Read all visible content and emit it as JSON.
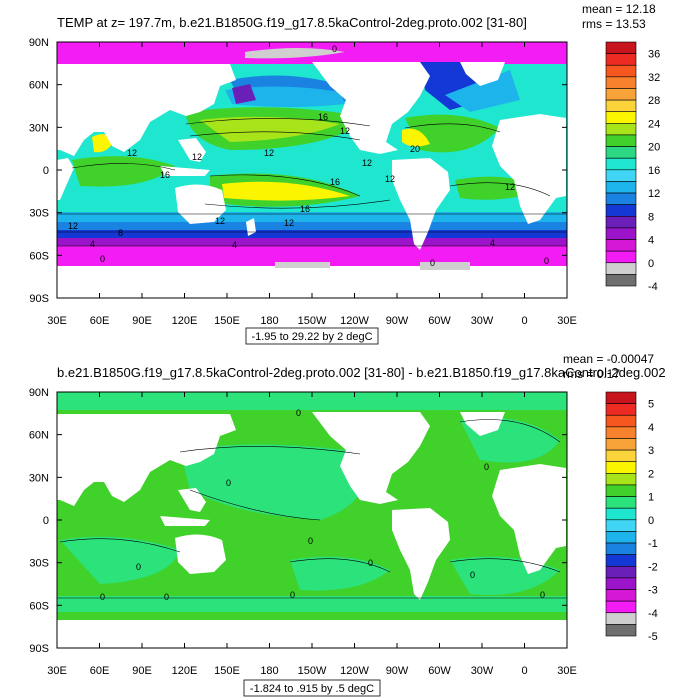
{
  "chart_data": [
    {
      "type": "heatmap",
      "title": "TEMP at z= 197.7m, b.e21.B1850G.f19_g17.8.5kaControl-2deg.proto.002 [31-80]",
      "stats": {
        "mean": "mean = 12.18",
        "rms": "rms = 13.53"
      },
      "x_ticks": [
        "30E",
        "60E",
        "90E",
        "120E",
        "150E",
        "180",
        "150W",
        "120W",
        "90W",
        "60W",
        "30W",
        "0",
        "30E"
      ],
      "y_ticks": [
        "90N",
        "60N",
        "30N",
        "0",
        "30S",
        "60S",
        "90S"
      ],
      "range_note": "-1.95 to 29.22 by 2 degC",
      "colorbar": {
        "labels": [
          "36",
          "32",
          "28",
          "24",
          "20",
          "16",
          "12",
          "8",
          "4",
          "0",
          "-4"
        ],
        "colors": [
          "#c8141c",
          "#ee2b22",
          "#f5571e",
          "#f7812c",
          "#f8a33a",
          "#fbd33b",
          "#fcf500",
          "#a8e41a",
          "#40d12b",
          "#2cd884",
          "#1ee6cf",
          "#40d5f4",
          "#1db4ec",
          "#1a82e0",
          "#1438d5",
          "#6a1fb8",
          "#9b14c9",
          "#d517d6",
          "#f31cf5",
          "#cfcfcf",
          "#6f6f6f"
        ]
      },
      "contour_labels": [
        "0",
        "16",
        "12",
        "12",
        "12",
        "16",
        "20",
        "12",
        "12",
        "16",
        "12",
        "12",
        "16",
        "12",
        "12",
        "12",
        "8",
        "4",
        "4",
        "4",
        "0",
        "0",
        "0"
      ]
    },
    {
      "type": "heatmap",
      "title": "b.e21.B1850G.f19_g17.8.5kaControl-2deg.proto.002 [31-80] - b.e21.B1850.f19_g17.8kaControl-2deg.002",
      "stats": {
        "mean": "mean = -0.00047",
        "rms": "rms = 0.17"
      },
      "x_ticks": [
        "30E",
        "60E",
        "90E",
        "120E",
        "150E",
        "180",
        "150W",
        "120W",
        "90W",
        "60W",
        "30W",
        "0",
        "30E"
      ],
      "y_ticks": [
        "90N",
        "60N",
        "30N",
        "0",
        "30S",
        "60S",
        "90S"
      ],
      "range_note": "-1.824 to .915 by .5 degC",
      "colorbar": {
        "labels": [
          "5",
          "4",
          "3",
          "2",
          "1",
          "0",
          "-1",
          "-2",
          "-3",
          "-4",
          "-5"
        ],
        "colors": [
          "#c8141c",
          "#ee2b22",
          "#f5571e",
          "#f7812c",
          "#f8a33a",
          "#fbd33b",
          "#fcf500",
          "#a8e41a",
          "#40d12b",
          "#2ce27a",
          "#1ee6cf",
          "#40d5f4",
          "#1db4ec",
          "#1a82e0",
          "#1438d5",
          "#6a1fb8",
          "#9b14c9",
          "#d517d6",
          "#f31cf5",
          "#cfcfcf",
          "#6f6f6f"
        ]
      },
      "contour_labels": [
        "0",
        "0",
        "0",
        "0",
        "0",
        "0",
        "0",
        "0",
        "0",
        "0",
        "0"
      ]
    }
  ]
}
